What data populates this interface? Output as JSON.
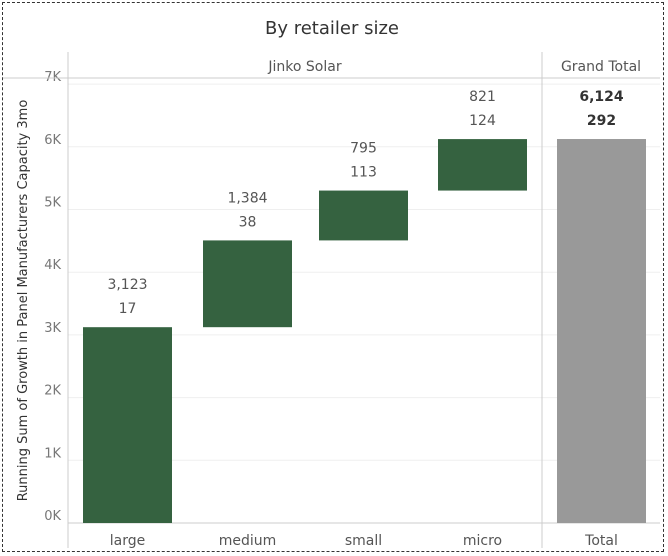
{
  "chart_data": {
    "type": "bar",
    "subtype": "waterfall",
    "title": "By retailer size",
    "ylabel": "Running Sum of Growth in Panel Manufacturers Capacity 3mo",
    "xlabel": "",
    "panes": [
      {
        "header": "Jinko Solar",
        "categories": [
          "large",
          "medium",
          "small",
          "micro"
        ]
      },
      {
        "header": "Grand Total",
        "categories": [
          "Total"
        ]
      }
    ],
    "categories": [
      "large",
      "medium",
      "small",
      "micro",
      "Total"
    ],
    "values": [
      3123,
      1384,
      795,
      821,
      6124
    ],
    "counts": [
      17,
      38,
      113,
      124,
      292
    ],
    "value_labels": [
      "3,123",
      "1,384",
      "795",
      "821",
      "6,124"
    ],
    "count_labels": [
      "17",
      "38",
      "113",
      "124",
      "292"
    ],
    "ylim": [
      0,
      7000
    ],
    "yticks": [
      0,
      1000,
      2000,
      3000,
      4000,
      5000,
      6000,
      7000
    ],
    "ytick_labels": [
      "0K",
      "1K",
      "2K",
      "3K",
      "4K",
      "5K",
      "6K",
      "7K"
    ],
    "grid": true,
    "colors": {
      "step": "#356240",
      "total": "#999999"
    }
  }
}
